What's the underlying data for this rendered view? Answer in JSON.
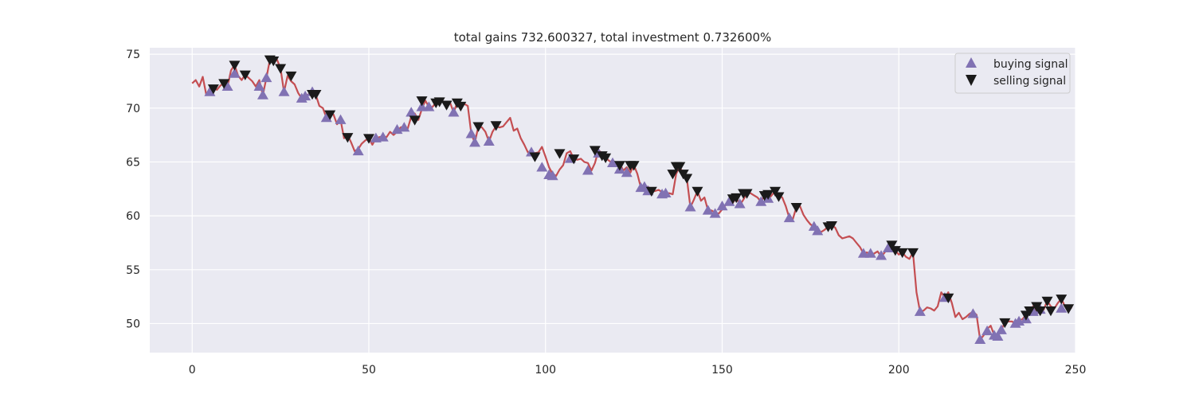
{
  "chart_data": {
    "type": "line",
    "title": "total gains 732.600327, total investment 0.732600%",
    "xlabel": "",
    "ylabel": "",
    "xlim": [
      -12,
      250
    ],
    "ylim": [
      47.3,
      75.6
    ],
    "xticks": [
      0,
      50,
      100,
      150,
      200,
      250
    ],
    "yticks": [
      50,
      55,
      60,
      65,
      70,
      75
    ],
    "grid": true,
    "legend_position": "top-right",
    "colors": {
      "line": "#c44e52",
      "buy": "#8172b3",
      "sell": "#1a1a1a",
      "plot_bg": "#eaeaf2",
      "grid": "#ffffff"
    },
    "legend": [
      {
        "label": "buying signal",
        "marker": "triangle-up"
      },
      {
        "label": "selling signal",
        "marker": "triangle-down"
      }
    ],
    "price": [
      [
        0,
        72.3
      ],
      [
        1,
        72.6
      ],
      [
        2,
        72.0
      ],
      [
        3,
        72.9
      ],
      [
        4,
        71.2
      ],
      [
        5,
        71.5
      ],
      [
        6,
        71.9
      ],
      [
        7,
        71.7
      ],
      [
        8,
        72.1
      ],
      [
        9,
        72.3
      ],
      [
        10,
        72.0
      ],
      [
        11,
        73.5
      ],
      [
        12,
        74.0
      ],
      [
        13,
        73.0
      ],
      [
        14,
        72.6
      ],
      [
        15,
        73.1
      ],
      [
        16,
        72.8
      ],
      [
        17,
        72.5
      ],
      [
        18,
        72.0
      ],
      [
        19,
        72.6
      ],
      [
        20,
        71.2
      ],
      [
        21,
        72.8
      ],
      [
        22,
        74.5
      ],
      [
        23,
        74.4
      ],
      [
        24,
        74.5
      ],
      [
        25,
        73.7
      ],
      [
        26,
        71.5
      ],
      [
        27,
        73.0
      ],
      [
        28,
        72.5
      ],
      [
        29,
        72.2
      ],
      [
        30,
        71.4
      ],
      [
        31,
        70.9
      ],
      [
        32,
        71.1
      ],
      [
        33,
        71.3
      ],
      [
        34,
        71.5
      ],
      [
        35,
        71.2
      ],
      [
        36,
        70.2
      ],
      [
        37,
        70.0
      ],
      [
        38,
        69.1
      ],
      [
        39,
        69.5
      ],
      [
        40,
        69.4
      ],
      [
        41,
        68.5
      ],
      [
        42,
        68.9
      ],
      [
        43,
        67.2
      ],
      [
        44,
        67.5
      ],
      [
        45,
        66.8
      ],
      [
        46,
        66.0
      ],
      [
        47,
        66.2
      ],
      [
        48,
        66.7
      ],
      [
        49,
        67.0
      ],
      [
        50,
        67.2
      ],
      [
        51,
        66.6
      ],
      [
        52,
        67.2
      ],
      [
        53,
        67.3
      ],
      [
        54,
        67.4
      ],
      [
        55,
        67.3
      ],
      [
        56,
        67.8
      ],
      [
        57,
        67.5
      ],
      [
        58,
        67.8
      ],
      [
        59,
        68.2
      ],
      [
        60,
        68.3
      ],
      [
        61,
        68.1
      ],
      [
        62,
        69.2
      ],
      [
        63,
        69.5
      ],
      [
        64,
        68.9
      ],
      [
        65,
        69.9
      ],
      [
        66,
        70.7
      ],
      [
        67,
        70.1
      ],
      [
        68,
        70.1
      ],
      [
        69,
        70.5
      ],
      [
        70,
        70.7
      ],
      [
        71,
        70.6
      ],
      [
        72,
        70.3
      ],
      [
        73,
        70.5
      ],
      [
        74,
        69.6
      ],
      [
        75,
        70.5
      ],
      [
        76,
        70.4
      ],
      [
        77,
        70.4
      ],
      [
        78,
        70.2
      ],
      [
        79,
        67.6
      ],
      [
        80,
        66.8
      ],
      [
        81,
        68.3
      ],
      [
        82,
        68.2
      ],
      [
        83,
        67.8
      ],
      [
        84,
        66.9
      ],
      [
        85,
        67.8
      ],
      [
        86,
        68.3
      ],
      [
        87,
        68.2
      ],
      [
        88,
        68.3
      ],
      [
        89,
        68.7
      ],
      [
        90,
        69.1
      ],
      [
        91,
        67.9
      ],
      [
        92,
        68.1
      ],
      [
        93,
        67.2
      ],
      [
        94,
        66.6
      ],
      [
        95,
        65.9
      ],
      [
        96,
        66.0
      ],
      [
        97,
        65.8
      ],
      [
        98,
        65.9
      ],
      [
        99,
        66.4
      ],
      [
        100,
        65.5
      ],
      [
        101,
        64.5
      ],
      [
        102,
        63.9
      ],
      [
        103,
        63.7
      ],
      [
        104,
        64.3
      ],
      [
        105,
        64.7
      ],
      [
        106,
        65.8
      ],
      [
        107,
        66.0
      ],
      [
        108,
        65.3
      ],
      [
        109,
        65.2
      ],
      [
        110,
        65.3
      ],
      [
        111,
        65.0
      ],
      [
        112,
        64.9
      ],
      [
        113,
        64.2
      ],
      [
        114,
        64.9
      ],
      [
        115,
        66.1
      ],
      [
        116,
        65.8
      ],
      [
        117,
        65.4
      ],
      [
        118,
        65.1
      ],
      [
        119,
        64.9
      ],
      [
        120,
        64.6
      ],
      [
        121,
        64.9
      ],
      [
        122,
        64.2
      ],
      [
        123,
        64.5
      ],
      [
        124,
        64.0
      ],
      [
        125,
        64.7
      ],
      [
        126,
        63.9
      ],
      [
        127,
        62.6
      ],
      [
        128,
        62.4
      ],
      [
        129,
        62.7
      ],
      [
        130,
        62.3
      ],
      [
        131,
        62.3
      ],
      [
        132,
        62.4
      ],
      [
        133,
        62.2
      ],
      [
        134,
        62.0
      ],
      [
        135,
        62.1
      ],
      [
        136,
        62.0
      ],
      [
        137,
        63.9
      ],
      [
        138,
        64.6
      ],
      [
        139,
        63.8
      ],
      [
        140,
        63.5
      ],
      [
        141,
        60.8
      ],
      [
        142,
        61.5
      ],
      [
        143,
        62.3
      ],
      [
        144,
        61.4
      ],
      [
        145,
        61.7
      ],
      [
        146,
        60.5
      ],
      [
        147,
        60.5
      ],
      [
        148,
        60.3
      ],
      [
        149,
        60.2
      ],
      [
        150,
        60.6
      ],
      [
        151,
        61.0
      ],
      [
        152,
        61.3
      ],
      [
        153,
        61.2
      ],
      [
        154,
        61.7
      ],
      [
        155,
        61.0
      ],
      [
        156,
        61.5
      ],
      [
        157,
        62.1
      ],
      [
        158,
        62.1
      ],
      [
        159,
        61.9
      ],
      [
        160,
        61.7
      ],
      [
        161,
        61.3
      ],
      [
        162,
        61.9
      ],
      [
        163,
        61.5
      ],
      [
        164,
        61.9
      ],
      [
        165,
        62.3
      ],
      [
        166,
        61.9
      ],
      [
        167,
        61.7
      ],
      [
        168,
        60.9
      ],
      [
        169,
        59.8
      ],
      [
        170,
        59.7
      ],
      [
        171,
        60.8
      ],
      [
        172,
        60.9
      ],
      [
        173,
        60.1
      ],
      [
        174,
        59.6
      ],
      [
        175,
        59.2
      ],
      [
        176,
        59.0
      ],
      [
        177,
        58.7
      ],
      [
        178,
        58.5
      ],
      [
        179,
        58.7
      ],
      [
        180,
        59.0
      ],
      [
        181,
        59.1
      ],
      [
        182,
        58.9
      ],
      [
        183,
        58.2
      ],
      [
        184,
        57.9
      ],
      [
        185,
        58.0
      ],
      [
        186,
        58.1
      ],
      [
        187,
        57.9
      ],
      [
        188,
        57.5
      ],
      [
        189,
        57.1
      ],
      [
        190,
        56.5
      ],
      [
        191,
        56.6
      ],
      [
        192,
        56.3
      ],
      [
        193,
        56.5
      ],
      [
        194,
        56.7
      ],
      [
        195,
        56.2
      ],
      [
        196,
        56.6
      ],
      [
        197,
        57.0
      ],
      [
        198,
        57.3
      ],
      [
        199,
        56.8
      ],
      [
        200,
        56.4
      ],
      [
        201,
        56.6
      ],
      [
        202,
        56.2
      ],
      [
        203,
        56.0
      ],
      [
        204,
        56.6
      ],
      [
        205,
        52.9
      ],
      [
        206,
        51.1
      ],
      [
        207,
        51.2
      ],
      [
        208,
        51.5
      ],
      [
        209,
        51.4
      ],
      [
        210,
        51.2
      ],
      [
        211,
        51.6
      ],
      [
        212,
        52.9
      ],
      [
        213,
        52.4
      ],
      [
        214,
        52.9
      ],
      [
        215,
        51.9
      ],
      [
        216,
        50.6
      ],
      [
        217,
        51.0
      ],
      [
        218,
        50.4
      ],
      [
        219,
        50.6
      ],
      [
        220,
        50.9
      ],
      [
        221,
        51.1
      ],
      [
        222,
        50.8
      ],
      [
        223,
        48.5
      ],
      [
        224,
        48.9
      ],
      [
        225,
        49.5
      ],
      [
        226,
        49.8
      ],
      [
        227,
        48.9
      ],
      [
        228,
        48.8
      ],
      [
        229,
        49.4
      ],
      [
        230,
        50.1
      ],
      [
        231,
        50.2
      ],
      [
        232,
        50.2
      ],
      [
        233,
        50.0
      ],
      [
        234,
        50.3
      ],
      [
        235,
        50.4
      ],
      [
        236,
        50.8
      ],
      [
        237,
        51.1
      ],
      [
        238,
        51.6
      ],
      [
        239,
        50.9
      ],
      [
        240,
        51.2
      ],
      [
        241,
        51.3
      ],
      [
        242,
        52.1
      ],
      [
        243,
        51.6
      ],
      [
        244,
        51.4
      ],
      [
        245,
        51.9
      ],
      [
        246,
        52.3
      ],
      [
        247,
        51.6
      ],
      [
        248,
        51.4
      ],
      [
        249,
        51.5
      ]
    ],
    "buying_signal": [
      [
        5,
        71.5
      ],
      [
        10,
        72.0
      ],
      [
        12,
        73.2
      ],
      [
        19,
        72.0
      ],
      [
        20,
        71.2
      ],
      [
        21,
        72.8
      ],
      [
        26,
        71.5
      ],
      [
        31,
        70.9
      ],
      [
        32,
        71.1
      ],
      [
        34,
        71.5
      ],
      [
        38,
        69.1
      ],
      [
        42,
        68.9
      ],
      [
        47,
        66.0
      ],
      [
        52,
        67.2
      ],
      [
        54,
        67.3
      ],
      [
        58,
        68.0
      ],
      [
        60,
        68.2
      ],
      [
        62,
        69.6
      ],
      [
        65,
        70.1
      ],
      [
        67,
        70.1
      ],
      [
        74,
        69.6
      ],
      [
        79,
        67.6
      ],
      [
        80,
        66.8
      ],
      [
        84,
        66.9
      ],
      [
        96,
        65.9
      ],
      [
        99,
        64.5
      ],
      [
        101,
        63.8
      ],
      [
        102,
        63.7
      ],
      [
        107,
        65.3
      ],
      [
        112,
        64.2
      ],
      [
        115,
        65.8
      ],
      [
        119,
        64.9
      ],
      [
        121,
        64.3
      ],
      [
        123,
        64.0
      ],
      [
        127,
        62.6
      ],
      [
        128,
        62.7
      ],
      [
        129,
        62.3
      ],
      [
        133,
        62.0
      ],
      [
        134,
        62.1
      ],
      [
        141,
        60.8
      ],
      [
        146,
        60.5
      ],
      [
        148,
        60.2
      ],
      [
        150,
        60.9
      ],
      [
        152,
        61.3
      ],
      [
        155,
        61.1
      ],
      [
        161,
        61.3
      ],
      [
        163,
        61.6
      ],
      [
        169,
        59.8
      ],
      [
        176,
        59.0
      ],
      [
        177,
        58.6
      ],
      [
        190,
        56.5
      ],
      [
        192,
        56.5
      ],
      [
        195,
        56.3
      ],
      [
        197,
        57.0
      ],
      [
        206,
        51.1
      ],
      [
        213,
        52.4
      ],
      [
        221,
        50.9
      ],
      [
        223,
        48.5
      ],
      [
        225,
        49.3
      ],
      [
        227,
        48.9
      ],
      [
        228,
        48.8
      ],
      [
        229,
        49.4
      ],
      [
        233,
        50.0
      ],
      [
        234,
        50.2
      ],
      [
        236,
        50.4
      ],
      [
        238,
        51.1
      ],
      [
        240,
        51.3
      ],
      [
        246,
        51.4
      ]
    ],
    "selling_signal": [
      [
        6,
        71.8
      ],
      [
        9,
        72.3
      ],
      [
        12,
        74.0
      ],
      [
        15,
        73.1
      ],
      [
        22,
        74.5
      ],
      [
        23,
        74.4
      ],
      [
        25,
        73.7
      ],
      [
        28,
        73.0
      ],
      [
        34,
        71.3
      ],
      [
        35,
        71.3
      ],
      [
        39,
        69.4
      ],
      [
        44,
        67.3
      ],
      [
        50,
        67.2
      ],
      [
        63,
        68.9
      ],
      [
        65,
        70.7
      ],
      [
        69,
        70.5
      ],
      [
        70,
        70.6
      ],
      [
        72,
        70.3
      ],
      [
        75,
        70.5
      ],
      [
        76,
        70.2
      ],
      [
        81,
        68.3
      ],
      [
        86,
        68.4
      ],
      [
        97,
        65.5
      ],
      [
        104,
        65.8
      ],
      [
        108,
        65.3
      ],
      [
        114,
        66.1
      ],
      [
        116,
        65.6
      ],
      [
        117,
        65.4
      ],
      [
        121,
        64.7
      ],
      [
        124,
        64.7
      ],
      [
        125,
        64.7
      ],
      [
        130,
        62.3
      ],
      [
        136,
        63.9
      ],
      [
        137,
        64.6
      ],
      [
        138,
        64.6
      ],
      [
        139,
        63.9
      ],
      [
        140,
        63.5
      ],
      [
        143,
        62.3
      ],
      [
        153,
        61.6
      ],
      [
        154,
        61.7
      ],
      [
        156,
        62.1
      ],
      [
        157,
        62.1
      ],
      [
        162,
        61.9
      ],
      [
        163,
        62.0
      ],
      [
        165,
        62.3
      ],
      [
        166,
        61.8
      ],
      [
        171,
        60.8
      ],
      [
        180,
        59.0
      ],
      [
        181,
        59.1
      ],
      [
        198,
        57.3
      ],
      [
        199,
        56.8
      ],
      [
        201,
        56.6
      ],
      [
        204,
        56.6
      ],
      [
        214,
        52.4
      ],
      [
        230,
        50.1
      ],
      [
        236,
        50.8
      ],
      [
        237,
        51.2
      ],
      [
        239,
        51.6
      ],
      [
        240,
        51.2
      ],
      [
        242,
        52.1
      ],
      [
        243,
        51.2
      ],
      [
        246,
        52.3
      ],
      [
        248,
        51.4
      ]
    ]
  }
}
